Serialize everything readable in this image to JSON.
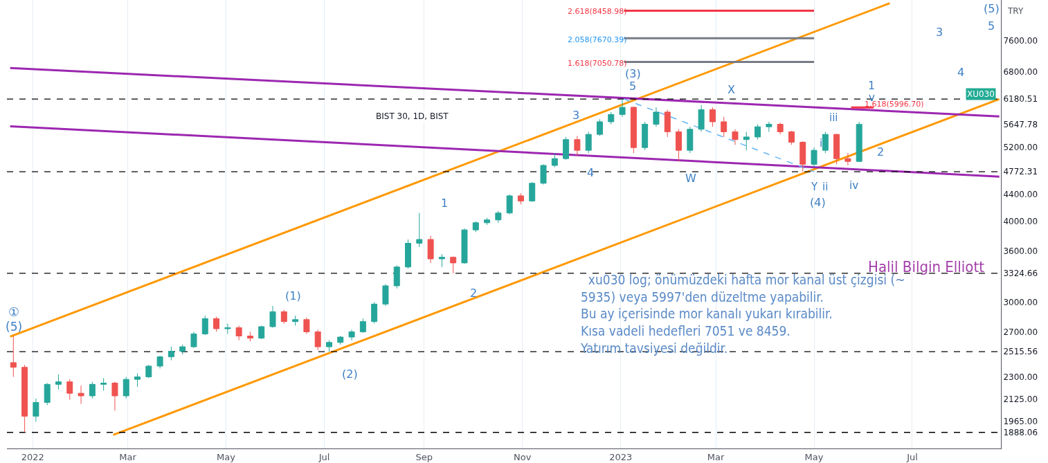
{
  "chart_data": {
    "type": "candlestick",
    "x": [
      "2021-12-20",
      "2021-12-27",
      "2022-01-03",
      "2022-01-10",
      "2022-01-17",
      "2022-01-24",
      "2022-01-31",
      "2022-02-07",
      "2022-02-14",
      "2022-02-21",
      "2022-02-28",
      "2022-03-07",
      "2022-03-14",
      "2022-03-21",
      "2022-03-28",
      "2022-04-04",
      "2022-04-11",
      "2022-04-18",
      "2022-04-25",
      "2022-05-02",
      "2022-05-09",
      "2022-05-16",
      "2022-05-23",
      "2022-05-30",
      "2022-06-06",
      "2022-06-13",
      "2022-06-20",
      "2022-06-27",
      "2022-07-04",
      "2022-07-11",
      "2022-07-18",
      "2022-07-25",
      "2022-08-01",
      "2022-08-08",
      "2022-08-15",
      "2022-08-22",
      "2022-08-29",
      "2022-09-05",
      "2022-09-12",
      "2022-09-19",
      "2022-09-26",
      "2022-10-03",
      "2022-10-10",
      "2022-10-17",
      "2022-10-24",
      "2022-10-31",
      "2022-11-07",
      "2022-11-14",
      "2022-11-21",
      "2022-11-28",
      "2022-12-05",
      "2022-12-12",
      "2022-12-19",
      "2022-12-26",
      "2023-01-02",
      "2023-01-09",
      "2023-01-16",
      "2023-01-23",
      "2023-01-30",
      "2023-02-06",
      "2023-02-13",
      "2023-02-20",
      "2023-02-27",
      "2023-03-06",
      "2023-03-13",
      "2023-03-20",
      "2023-03-27",
      "2023-04-03",
      "2023-04-10",
      "2023-04-17",
      "2023-04-24",
      "2023-05-01",
      "2023-05-08",
      "2023-05-15",
      "2023-05-22",
      "2023-05-29"
    ],
    "ohlc": [
      [
        2420,
        2660,
        2300,
        2380
      ],
      [
        2380,
        2400,
        1888.06,
        2000
      ],
      [
        2000,
        2130,
        1960,
        2100
      ],
      [
        2100,
        2250,
        2080,
        2240
      ],
      [
        2240,
        2320,
        2200,
        2260
      ],
      [
        2260,
        2280,
        2120,
        2170
      ],
      [
        2170,
        2230,
        2090,
        2150
      ],
      [
        2150,
        2260,
        2130,
        2240
      ],
      [
        2240,
        2290,
        2190,
        2250
      ],
      [
        2250,
        2260,
        2040,
        2150
      ],
      [
        2150,
        2300,
        2130,
        2280
      ],
      [
        2280,
        2330,
        2220,
        2300
      ],
      [
        2300,
        2400,
        2290,
        2390
      ],
      [
        2390,
        2480,
        2370,
        2470
      ],
      [
        2470,
        2560,
        2440,
        2520
      ],
      [
        2520,
        2580,
        2490,
        2560
      ],
      [
        2560,
        2700,
        2550,
        2680
      ],
      [
        2680,
        2860,
        2670,
        2830
      ],
      [
        2830,
        2850,
        2700,
        2730
      ],
      [
        2730,
        2780,
        2680,
        2740
      ],
      [
        2740,
        2760,
        2620,
        2660
      ],
      [
        2660,
        2700,
        2610,
        2640
      ],
      [
        2640,
        2760,
        2630,
        2750
      ],
      [
        2750,
        2960,
        2740,
        2900
      ],
      [
        2900,
        2920,
        2780,
        2800
      ],
      [
        2800,
        2860,
        2760,
        2820
      ],
      [
        2820,
        2840,
        2680,
        2700
      ],
      [
        2700,
        2720,
        2530,
        2560
      ],
      [
        2560,
        2620,
        2515.56,
        2600
      ],
      [
        2600,
        2660,
        2580,
        2650
      ],
      [
        2650,
        2720,
        2620,
        2700
      ],
      [
        2700,
        2830,
        2690,
        2800
      ],
      [
        2800,
        3000,
        2780,
        2980
      ],
      [
        2980,
        3200,
        2960,
        3180
      ],
      [
        3180,
        3420,
        3150,
        3400
      ],
      [
        3400,
        3750,
        3380,
        3700
      ],
      [
        3700,
        4120,
        3650,
        3750
      ],
      [
        3750,
        3800,
        3450,
        3500
      ],
      [
        3500,
        3560,
        3400,
        3520
      ],
      [
        3520,
        3530,
        3324.66,
        3450
      ],
      [
        3450,
        3900,
        3440,
        3880
      ],
      [
        3880,
        4000,
        3850,
        3980
      ],
      [
        3980,
        4050,
        3950,
        4020
      ],
      [
        4020,
        4150,
        3980,
        4120
      ],
      [
        4120,
        4400,
        4100,
        4380
      ],
      [
        4380,
        4420,
        4250,
        4300
      ],
      [
        4300,
        4600,
        4290,
        4580
      ],
      [
        4580,
        4900,
        4560,
        4880
      ],
      [
        4880,
        5100,
        4850,
        5000
      ],
      [
        5000,
        5400,
        4980,
        5350
      ],
      [
        5350,
        5420,
        5050,
        5150
      ],
      [
        5150,
        5500,
        5100,
        5450
      ],
      [
        5450,
        5750,
        5420,
        5700
      ],
      [
        5700,
        5900,
        5650,
        5850
      ],
      [
        5850,
        6180.51,
        5800,
        6000
      ],
      [
        6000,
        6020,
        5100,
        5200
      ],
      [
        5200,
        5700,
        5150,
        5650
      ],
      [
        5650,
        6000,
        5600,
        5900
      ],
      [
        5900,
        5950,
        5400,
        5500
      ],
      [
        5500,
        5550,
        4950,
        5150
      ],
      [
        5150,
        5600,
        5100,
        5550
      ],
      [
        5550,
        6050,
        5500,
        5950
      ],
      [
        5950,
        6000,
        5600,
        5700
      ],
      [
        5700,
        5800,
        5400,
        5500
      ],
      [
        5500,
        5550,
        5250,
        5350
      ],
      [
        5350,
        5500,
        5150,
        5400
      ],
      [
        5400,
        5650,
        5350,
        5600
      ],
      [
        5600,
        5700,
        5500,
        5650
      ],
      [
        5650,
        5680,
        5450,
        5500
      ],
      [
        5500,
        5520,
        5250,
        5300
      ],
      [
        5300,
        5320,
        4772.31,
        4900
      ],
      [
        4900,
        5200,
        4850,
        5150
      ],
      [
        5150,
        5500,
        5100,
        5450
      ],
      [
        5450,
        5460,
        4900,
        5000
      ],
      [
        5000,
        5100,
        4880,
        4950
      ],
      [
        4950,
        5700,
        4940,
        5647.78
      ]
    ],
    "colors": [
      "#ef5350",
      "#ef5350",
      "#26a69a",
      "#26a69a",
      "#26a69a",
      "#ef5350",
      "#ef5350",
      "#26a69a",
      "#26a69a",
      "#ef5350",
      "#26a69a",
      "#26a69a",
      "#26a69a",
      "#26a69a",
      "#26a69a",
      "#26a69a",
      "#26a69a",
      "#26a69a",
      "#ef5350",
      "#26a69a",
      "#ef5350",
      "#ef5350",
      "#26a69a",
      "#26a69a",
      "#ef5350",
      "#26a69a",
      "#ef5350",
      "#ef5350",
      "#26a69a",
      "#26a69a",
      "#26a69a",
      "#26a69a",
      "#26a69a",
      "#26a69a",
      "#26a69a",
      "#26a69a",
      "#26a69a",
      "#ef5350",
      "#26a69a",
      "#ef5350",
      "#26a69a",
      "#26a69a",
      "#26a69a",
      "#26a69a",
      "#26a69a",
      "#ef5350",
      "#26a69a",
      "#26a69a",
      "#26a69a",
      "#26a69a",
      "#ef5350",
      "#26a69a",
      "#26a69a",
      "#26a69a",
      "#26a69a",
      "#ef5350",
      "#26a69a",
      "#26a69a",
      "#ef5350",
      "#ef5350",
      "#26a69a",
      "#26a69a",
      "#ef5350",
      "#ef5350",
      "#ef5350",
      "#26a69a",
      "#26a69a",
      "#26a69a",
      "#ef5350",
      "#ef5350",
      "#ef5350",
      "#26a69a",
      "#26a69a",
      "#ef5350",
      "#ef5350",
      "#26a69a"
    ],
    "series": [
      {
        "type": "line",
        "color": "#ff9800",
        "x": [
          "2021-12-18",
          "2023-06-17"
        ],
        "values": [
          2655,
          8690
        ]
      },
      {
        "type": "line",
        "color": "#ff9800",
        "x": [
          "2022-02-20",
          "2023-08-24"
        ],
        "values": [
          1871,
          6180
        ]
      },
      {
        "type": "line",
        "color": "#9c27b0",
        "x": [
          "2021-12-18",
          "2023-08-24"
        ],
        "values": [
          6900,
          5810
        ]
      },
      {
        "type": "line",
        "color": "#9c27b0",
        "x": [
          "2021-12-18",
          "2023-08-24"
        ],
        "values": [
          5610,
          4690
        ]
      },
      {
        "type": "line",
        "color": "#64b5f6",
        "line_style": "dashed",
        "x": [
          "2023-01-03",
          "2023-05-01"
        ],
        "values": [
          6180.51,
          4772.31
        ]
      },
      {
        "type": "line",
        "color": "#f23645",
        "x": [
          "2023-01-03",
          "2023-05-01"
        ],
        "values": [
          8458.98,
          8458.98
        ]
      },
      {
        "type": "line",
        "color": "#787b86",
        "x": [
          "2023-01-03",
          "2023-05-01"
        ],
        "values": [
          7670.39,
          7670.39
        ]
      },
      {
        "type": "line",
        "color": "#787b86",
        "x": [
          "2023-01-03",
          "2023-05-01"
        ],
        "values": [
          7050.78,
          7050.78
        ]
      },
      {
        "type": "line",
        "color": "#f23645",
        "x": [
          "2023-05-24",
          "2023-06-07"
        ],
        "values": [
          5996.7,
          5996.7
        ]
      }
    ],
    "ref_lines": [
      {
        "axis": "y",
        "value": 1888.06,
        "color": "#000000",
        "line_style": "dashed"
      },
      {
        "axis": "y",
        "value": 2515.56,
        "color": "#000000",
        "line_style": "dashed"
      },
      {
        "axis": "y",
        "value": 3324.66,
        "color": "#000000",
        "line_style": "dashed"
      },
      {
        "axis": "y",
        "value": 4772.31,
        "color": "#000000",
        "line_style": "dashed"
      },
      {
        "axis": "y",
        "value": 6180.51,
        "color": "#000000",
        "line_style": "dashed"
      }
    ],
    "annotations": [
      "BIST 30, 1D, BIST",
      "TRY",
      "XU030",
      "Halil Bilgin Elliott",
      "  xu030 log; önümüzdeki hafta mor kanal üst çizgisi (~\n5935) veya 5997'den düzeltme yapabilir.\nBu ay içerisinde mor kanalı yukarı kırabilir.\nKısa vadeli hedefleri 7051 ve 8459.\nYatırım tavsiyesi değildir.",
      "2.618(8458.98)",
      "2.058(7670.39)",
      "1.618(7050.78)",
      "1.618(5996.70)",
      "①",
      "(5)",
      "(1)",
      "(2)",
      "1",
      "2",
      "3",
      "4",
      "(3)",
      "5",
      "W",
      "X",
      "i",
      "Y",
      "ii",
      "(4)",
      "iii",
      "iv",
      "v",
      "1",
      "2",
      "3",
      "4",
      "5",
      "(5)"
    ],
    "xlim": [
      "2021-12-16",
      "2023-08-25"
    ],
    "xticks": [
      {
        "value": "2022-01-01",
        "label": "2022"
      },
      {
        "value": "2022-03-01",
        "label": "Mar"
      },
      {
        "value": "2022-05-01",
        "label": "May"
      },
      {
        "value": "2022-07-01",
        "label": "Jul"
      },
      {
        "value": "2022-09-01",
        "label": "Sep"
      },
      {
        "value": "2022-11-01",
        "label": "Nov"
      },
      {
        "value": "2023-01-01",
        "label": "2023"
      },
      {
        "value": "2023-03-01",
        "label": "Mar"
      },
      {
        "value": "2023-05-01",
        "label": "May"
      },
      {
        "value": "2023-07-01",
        "label": "Jul"
      }
    ],
    "ylim": [
      1783,
      8790
    ],
    "yticks": [
      {
        "value": 1888.06,
        "label": "1888.06"
      },
      {
        "value": 1965,
        "label": "1965.00"
      },
      {
        "value": 2125,
        "label": "2125.00"
      },
      {
        "value": 2300,
        "label": "2300.00"
      },
      {
        "value": 2515.56,
        "label": "2515.56"
      },
      {
        "value": 2700,
        "label": "2700.00"
      },
      {
        "value": 3000,
        "label": "3000.00"
      },
      {
        "value": 3324.66,
        "label": "3324.66"
      },
      {
        "value": 3600,
        "label": "3600.00"
      },
      {
        "value": 4000,
        "label": "4000.00"
      },
      {
        "value": 4400,
        "label": "4400.00"
      },
      {
        "value": 4772.31,
        "label": "4772.31"
      },
      {
        "value": 5200,
        "label": "5200.00"
      },
      {
        "value": 5647.78,
        "label": "5647.78"
      },
      {
        "value": 6180.51,
        "label": "6180.51"
      },
      {
        "value": 6800,
        "label": "6800.00"
      },
      {
        "value": 7600,
        "label": "7600.00"
      }
    ],
    "log": true,
    "grid": true
  }
}
